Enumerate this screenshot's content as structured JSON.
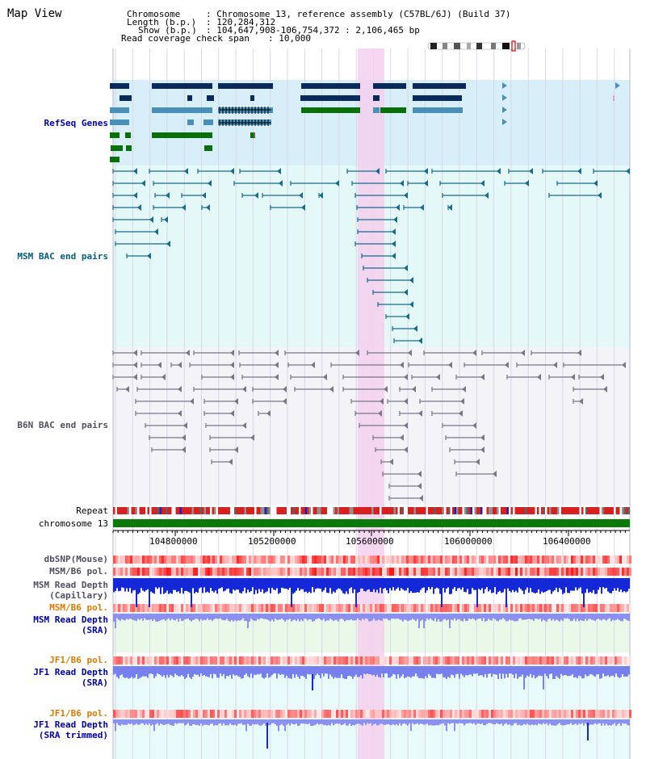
{
  "view_title": "Map View",
  "info": {
    "chromosome_key": "Chromosome",
    "chromosome_val": ": Chromosome 13, reference assembly (C57BL/6J) (Build 37)",
    "length_key": "Length (b.p.)",
    "length_val": ": 120,284,312",
    "show_key": "Show (b.p.)",
    "show_val": ": 104,647,908-106,754,372 : 2,106,465 bp",
    "span_key": "Read coverage check span",
    "span_val": ": 10,000"
  },
  "tracks": {
    "refseq": "RefSeq Genes",
    "msm_bac": "MSM BAC end pairs",
    "b6n_bac": "B6N BAC end pairs",
    "repeat": "Repeat",
    "chromosome": "chromosome 13",
    "dbsnp": "dbSNP(Mouse)",
    "msm_pol_1": "MSM/B6 pol.",
    "msm_depth_cap_1": "MSM Read Depth",
    "msm_depth_cap_2": "(Capillary)",
    "msm_pol_2": "MSM/B6 pol.",
    "msm_depth_sra_1": "MSM Read Depth",
    "msm_depth_sra_2": "(SRA)",
    "jf1_pol_1": "JF1/B6 pol.",
    "jf1_depth_sra_1": "JF1 Read Depth",
    "jf1_depth_sra_2": "(SRA)",
    "jf1_pol_2": "JF1/B6 pol.",
    "jf1_depth_trim_1": "JF1 Read Depth",
    "jf1_depth_trim_2": "(SRA trimmed)"
  },
  "axis_ticks": [
    "104800000",
    "105200000",
    "105600000",
    "106000000",
    "106400000"
  ],
  "colors": {
    "refseq_bg": "#d8eef8",
    "msm_bg": "#e4f8f8",
    "b6n_bg": "#f3f3f8",
    "highlight": "#f5d0ee",
    "label_blue": "#0000aa",
    "label_teal": "#006080",
    "label_gray": "#505060",
    "label_orange": "#e07800",
    "gene_dark": "#0a2a5c",
    "gene_mid": "#4a8fb8",
    "gene_green": "#0a6e0a",
    "chrom_green": "#0a7a0a"
  }
}
